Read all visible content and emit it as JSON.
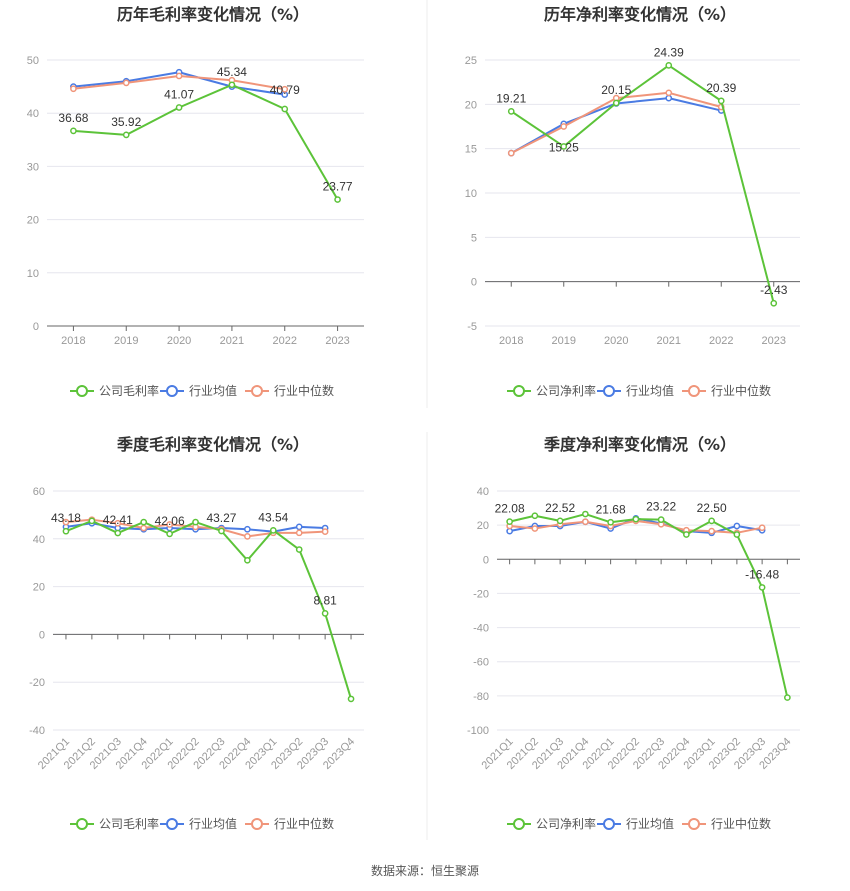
{
  "source_label": "数据来源：恒生聚源",
  "colors": {
    "company": "#5cc339",
    "industry_avg": "#4a7be3",
    "industry_median": "#f0957a",
    "grid": "#e6e6ee",
    "axis": "#666666"
  },
  "chart_data": [
    {
      "type": "line",
      "title": "历年毛利率变化情况（%）",
      "categories": [
        "2018",
        "2019",
        "2020",
        "2021",
        "2022",
        "2023"
      ],
      "ylim": [
        0,
        50
      ],
      "yticks": [
        0,
        10,
        20,
        30,
        40,
        50
      ],
      "series": [
        {
          "name": "公司毛利率",
          "key": "company",
          "values": [
            36.68,
            35.92,
            41.07,
            45.34,
            40.79,
            23.77
          ],
          "labels": [
            "36.68",
            "35.92",
            "41.07",
            "45.34",
            "40.79",
            "23.77"
          ]
        },
        {
          "name": "行业均值",
          "key": "industry_avg",
          "values": [
            45.0,
            46.0,
            47.7,
            45.0,
            43.5,
            null
          ]
        },
        {
          "name": "行业中位数",
          "key": "industry_median",
          "values": [
            44.6,
            45.7,
            47.0,
            46.2,
            44.5,
            null
          ]
        }
      ]
    },
    {
      "type": "line",
      "title": "历年净利率变化情况（%）",
      "categories": [
        "2018",
        "2019",
        "2020",
        "2021",
        "2022",
        "2023"
      ],
      "ylim": [
        -5,
        25
      ],
      "yticks": [
        -5,
        0,
        5,
        10,
        15,
        20,
        25
      ],
      "series": [
        {
          "name": "公司净利率",
          "key": "company",
          "values": [
            19.21,
            15.25,
            20.15,
            24.39,
            20.39,
            -2.43
          ],
          "labels": [
            "19.21",
            "15.25",
            "20.15",
            "24.39",
            "20.39",
            "-2.43"
          ]
        },
        {
          "name": "行业均值",
          "key": "industry_avg",
          "values": [
            14.5,
            17.8,
            20.1,
            20.7,
            19.3,
            null
          ]
        },
        {
          "name": "行业中位数",
          "key": "industry_median",
          "values": [
            14.5,
            17.5,
            20.7,
            21.3,
            19.7,
            null
          ]
        }
      ]
    },
    {
      "type": "line",
      "title": "季度毛利率变化情况（%）",
      "categories": [
        "2021Q1",
        "2021Q2",
        "2021Q3",
        "2021Q4",
        "2022Q1",
        "2022Q2",
        "2022Q3",
        "2022Q4",
        "2023Q1",
        "2023Q2",
        "2023Q3",
        "2023Q4"
      ],
      "ylim": [
        -40,
        60
      ],
      "yticks": [
        -40,
        -20,
        0,
        20,
        40,
        60
      ],
      "series": [
        {
          "name": "公司毛利率",
          "key": "company",
          "values": [
            43.18,
            47.5,
            42.41,
            47.0,
            42.06,
            47.0,
            43.27,
            31.0,
            43.54,
            35.5,
            8.81,
            -27.0
          ],
          "labels": [
            "43.18",
            "",
            "42.41",
            "",
            "42.06",
            "",
            "43.27",
            "",
            "43.54",
            "",
            "8.81",
            ""
          ]
        },
        {
          "name": "行业均值",
          "key": "industry_avg",
          "values": [
            45.0,
            46.5,
            44.5,
            44.0,
            44.5,
            44.0,
            44.5,
            44.0,
            43.0,
            45.0,
            44.5,
            null
          ]
        },
        {
          "name": "行业中位数",
          "key": "industry_median",
          "values": [
            47.0,
            48.0,
            46.5,
            44.5,
            46.0,
            45.0,
            44.0,
            41.0,
            42.5,
            42.5,
            43.0,
            null
          ]
        }
      ]
    },
    {
      "type": "line",
      "title": "季度净利率变化情况（%）",
      "categories": [
        "2021Q1",
        "2021Q2",
        "2021Q3",
        "2021Q4",
        "2022Q1",
        "2022Q2",
        "2022Q3",
        "2022Q4",
        "2023Q1",
        "2023Q2",
        "2023Q3",
        "2023Q4"
      ],
      "ylim": [
        -100,
        40
      ],
      "yticks": [
        -100,
        -80,
        -60,
        -40,
        -20,
        0,
        20,
        40
      ],
      "series": [
        {
          "name": "公司净利率",
          "key": "company",
          "values": [
            22.08,
            25.5,
            22.52,
            26.5,
            21.68,
            23.5,
            23.22,
            14.5,
            22.5,
            14.5,
            -16.48,
            -81.0
          ],
          "labels": [
            "22.08",
            "",
            "22.52",
            "",
            "21.68",
            "",
            "23.22",
            "",
            "22.50",
            "",
            "-16.48",
            ""
          ]
        },
        {
          "name": "行业均值",
          "key": "industry_avg",
          "values": [
            16.5,
            19.5,
            19.5,
            22.0,
            18.0,
            24.0,
            21.0,
            16.5,
            15.5,
            19.5,
            17.0,
            null
          ]
        },
        {
          "name": "行业中位数",
          "key": "industry_median",
          "values": [
            19.5,
            18.0,
            20.5,
            22.0,
            19.5,
            22.5,
            20.5,
            17.0,
            16.5,
            15.5,
            18.5,
            null
          ]
        }
      ]
    }
  ]
}
